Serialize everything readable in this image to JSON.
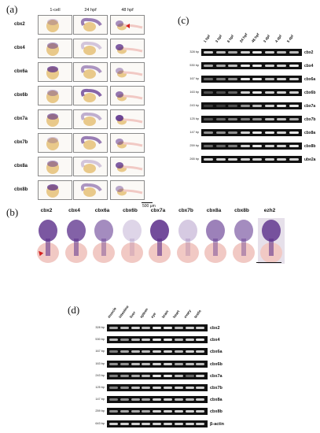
{
  "panel_a": {
    "label": "(a)",
    "columns": [
      "1-cell",
      "24 hpf",
      "48 hpf"
    ],
    "genes": [
      "cbx2",
      "cbx4",
      "cbx6a",
      "cbx6b",
      "cbx7a",
      "cbx7b",
      "cbx8a",
      "cbx8b"
    ],
    "scale_bar": "500 µm"
  },
  "panel_b": {
    "label": "(b)",
    "genes": [
      "cbx2",
      "cbx4",
      "cbx6a",
      "cbx6b",
      "cbx7a",
      "cbx7b",
      "cbx8a",
      "cbx8b",
      "ezh2"
    ]
  },
  "panel_c": {
    "label": "(c)",
    "timepoints": [
      "1 hpf",
      "3 hpf",
      "6 hpf",
      "24 hpf",
      "48 hpf",
      "3 dpf",
      "4 dpf",
      "5 dpf"
    ],
    "rows": [
      {
        "bp": "328 bp",
        "gene": "cbx2"
      },
      {
        "bp": "530 bp",
        "gene": "cbx4"
      },
      {
        "bp": "167 bp",
        "gene": "cbx6a"
      },
      {
        "bp": "163 bp",
        "gene": "cbx6b"
      },
      {
        "bp": "243 bp",
        "gene": "cbx7a"
      },
      {
        "bp": "125 bp",
        "gene": "cbx7b"
      },
      {
        "bp": "147 bp",
        "gene": "cbx8a"
      },
      {
        "bp": "259 bp",
        "gene": "cbx8b"
      },
      {
        "bp": "265 bp",
        "gene": "ube2a"
      }
    ]
  },
  "panel_d": {
    "label": "(d)",
    "tissues": [
      "muscle",
      "intestine",
      "liver",
      "spleen",
      "eye",
      "brain",
      "heart",
      "ovary",
      "testis"
    ],
    "rows": [
      {
        "bp": "328 bp",
        "gene": "cbx2"
      },
      {
        "bp": "530 bp",
        "gene": "cbx4"
      },
      {
        "bp": "167 bp",
        "gene": "cbx6a"
      },
      {
        "bp": "163 bp",
        "gene": "cbx6b"
      },
      {
        "bp": "243 bp",
        "gene": "cbx7a"
      },
      {
        "bp": "125 bp",
        "gene": "cbx7b"
      },
      {
        "bp": "147 bp",
        "gene": "cbx8a"
      },
      {
        "bp": "259 bp",
        "gene": "cbx8b"
      },
      {
        "bp": "643 bp",
        "gene": "β-actin"
      }
    ]
  },
  "colors": {
    "stain": "#5a2d8a",
    "yolk": "#e9c98a",
    "pink": "#f1c9c4",
    "band": "#e8e8e8",
    "gel": "#111111",
    "arrow": "#d42020"
  }
}
